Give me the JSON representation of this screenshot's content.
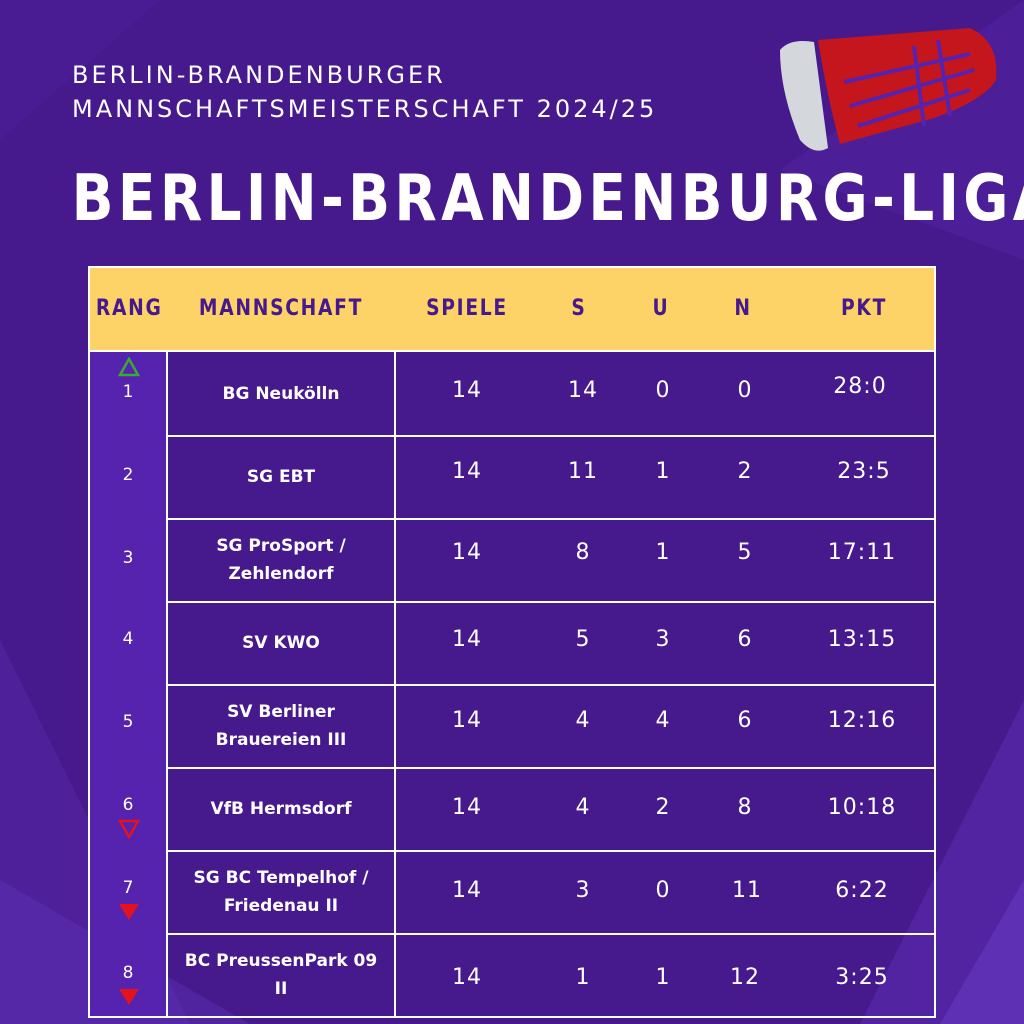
{
  "header": {
    "subtitle_line1": "BERLIN-BRANDENBURGER",
    "subtitle_line2": "MANNSCHAFTSMEISTERSCHAFT 2024/25",
    "title": "BERLIN-BRANDENBURG-LIGA"
  },
  "table": {
    "columns": [
      "RANG",
      "MANNSCHAFT",
      "SPIELE",
      "S",
      "U",
      "N",
      "PKT"
    ],
    "rows": [
      {
        "rank": "1",
        "team": "BG Neukölln",
        "spiele": "14",
        "s": "14",
        "u": "0",
        "n": "0",
        "pkt": "28:0",
        "trend": "promotion"
      },
      {
        "rank": "2",
        "team": "SG EBT",
        "spiele": "14",
        "s": "11",
        "u": "1",
        "n": "2",
        "pkt": "23:5",
        "trend": "none"
      },
      {
        "rank": "3",
        "team": "SG ProSport / Zehlendorf",
        "spiele": "14",
        "s": "8",
        "u": "1",
        "n": "5",
        "pkt": "17:11",
        "trend": "none"
      },
      {
        "rank": "4",
        "team": "SV KWO",
        "spiele": "14",
        "s": "5",
        "u": "3",
        "n": "6",
        "pkt": "13:15",
        "trend": "none"
      },
      {
        "rank": "5",
        "team": "SV Berliner Brauereien III",
        "spiele": "14",
        "s": "4",
        "u": "4",
        "n": "6",
        "pkt": "12:16",
        "trend": "none"
      },
      {
        "rank": "6",
        "team": "VfB Hermsdorf",
        "spiele": "14",
        "s": "4",
        "u": "2",
        "n": "8",
        "pkt": "10:18",
        "trend": "relegation"
      },
      {
        "rank": "7",
        "team": "SG BC Tempelhof / Friedenau II",
        "spiele": "14",
        "s": "3",
        "u": "0",
        "n": "11",
        "pkt": "6:22",
        "trend": "down"
      },
      {
        "rank": "8",
        "team": "BC PreussenPark 09 II",
        "spiele": "14",
        "s": "1",
        "u": "1",
        "n": "12",
        "pkt": "3:25",
        "trend": "down"
      }
    ]
  },
  "colors": {
    "background": "#46198c",
    "header_fill": "#fdd367",
    "header_text": "#46198c",
    "rank_column_fill": "#5523ad",
    "promotion": "#3aa935",
    "relegation": "#e3121f"
  },
  "icons": {
    "promotion": "triangle-up-outline-icon",
    "relegation": "triangle-down-outline-icon",
    "down": "triangle-down-filled-icon",
    "decor": "shuttlecock-icon"
  }
}
